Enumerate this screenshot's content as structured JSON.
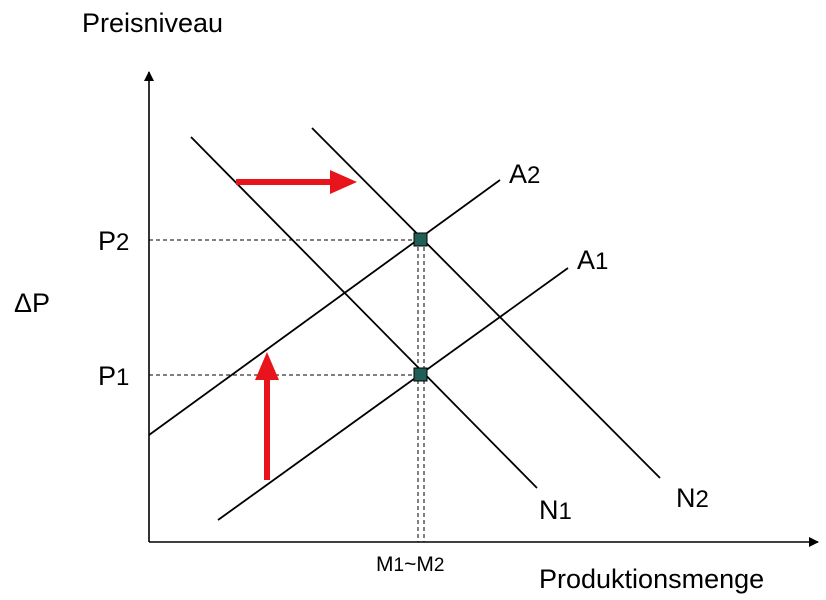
{
  "axes": {
    "y_label": "Preisniveau",
    "x_label": "Produktionsmenge",
    "delta_label": "ΔP"
  },
  "ticks": {
    "p2": {
      "main": "P",
      "sub": "2"
    },
    "p1": {
      "main": "P",
      "sub": "1"
    },
    "m": {
      "m1_main": "M",
      "m1_sub": "1",
      "sep": "~",
      "m2_main": "M",
      "m2_sub": "2"
    }
  },
  "curves": {
    "a2": {
      "main": "A",
      "sub": "2"
    },
    "a1": {
      "main": "A",
      "sub": "1"
    },
    "n1": {
      "main": "N",
      "sub": "1"
    },
    "n2": {
      "main": "N",
      "sub": "2"
    }
  },
  "colors": {
    "line": "#000000",
    "arrow": "#e8141b",
    "point": "#1f5f57"
  }
}
